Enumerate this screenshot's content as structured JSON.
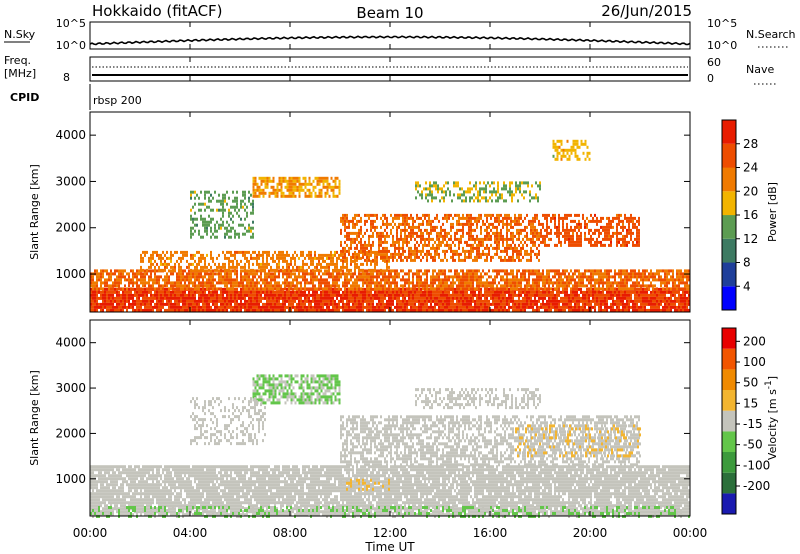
{
  "header": {
    "left": "Hokkaido (fitACF)",
    "center": "Beam 10",
    "right": "26/Jun/2015"
  },
  "noise_panel": {
    "left_label": "N.Sky",
    "right_label": "N.Search",
    "left_ticks": [
      "10^5",
      "10^0"
    ],
    "right_ticks": [
      "10^5",
      "10^0"
    ]
  },
  "freq_panel": {
    "left_label_line1": "Freq.",
    "left_label_line2": "[MHz]",
    "left_ticks": [
      "8"
    ],
    "right_label": "Nave",
    "right_ticks": [
      "60",
      "0"
    ]
  },
  "cpid": {
    "label": "CPID",
    "text": "rbsp 200"
  },
  "x_axis": {
    "label": "Time UT",
    "ticks": [
      "00:00",
      "04:00",
      "08:00",
      "12:00",
      "16:00",
      "20:00",
      "00:00"
    ]
  },
  "colors": {
    "power": [
      "#0000ff",
      "#1f3f9a",
      "#3d7a62",
      "#5c9c52",
      "#f2b400",
      "#f07a00",
      "#ee4d00",
      "#e81c00"
    ],
    "velocity": [
      "#e80000",
      "#f25500",
      "#f08a00",
      "#f3b530",
      "#c4c4bc",
      "#63c64a",
      "#3c9a3c",
      "#2b6f3a",
      "#1a1ab0"
    ],
    "black": "#000000"
  },
  "chart_data": [
    {
      "type": "heatmap",
      "title": "",
      "xlabel": "Time UT",
      "ylabel": "Slant Range [km]",
      "xlim": [
        "00:00",
        "24:00"
      ],
      "ylim": [
        180,
        4500
      ],
      "y_ticks": [
        "1000",
        "2000",
        "3000",
        "4000"
      ],
      "colorbar": {
        "label": "Power [dB]",
        "ticks": [
          "4",
          "8",
          "12",
          "16",
          "20",
          "24",
          "28"
        ],
        "range": [
          0,
          32
        ]
      },
      "regions": [
        {
          "t": [
            0.0,
            24.0
          ],
          "r": [
            200,
            700
          ],
          "value": 28,
          "density": 0.92
        },
        {
          "t": [
            0.0,
            24.0
          ],
          "r": [
            700,
            1100
          ],
          "value": 24,
          "density": 0.78
        },
        {
          "t": [
            2.0,
            12.0
          ],
          "r": [
            1100,
            1500
          ],
          "value": 22,
          "density": 0.55
        },
        {
          "t": [
            10.0,
            18.0
          ],
          "r": [
            1300,
            2300
          ],
          "value": 24,
          "density": 0.6
        },
        {
          "t": [
            18.0,
            22.0
          ],
          "r": [
            1600,
            2300
          ],
          "value": 26,
          "density": 0.6
        },
        {
          "t": [
            6.5,
            10.0
          ],
          "r": [
            2700,
            3100
          ],
          "value": 20,
          "density": 0.75
        },
        {
          "t": [
            4.0,
            6.5
          ],
          "r": [
            1800,
            2800
          ],
          "value": 14,
          "density": 0.45
        },
        {
          "t": [
            13.0,
            18.0
          ],
          "r": [
            2600,
            3000
          ],
          "value": 16,
          "density": 0.45
        },
        {
          "t": [
            18.5,
            20.0
          ],
          "r": [
            3500,
            3900
          ],
          "value": 18,
          "density": 0.5
        }
      ]
    },
    {
      "type": "heatmap",
      "title": "",
      "xlabel": "Time UT",
      "ylabel": "Slant Range [km]",
      "xlim": [
        "00:00",
        "24:00"
      ],
      "ylim": [
        180,
        4500
      ],
      "y_ticks": [
        "1000",
        "2000",
        "3000",
        "4000"
      ],
      "colorbar": {
        "label": "Velocity [m s^-1]",
        "ticks": [
          "200",
          "100",
          "50",
          "15",
          "-15",
          "-50",
          "-100",
          "-200"
        ],
        "range": [
          -250,
          250
        ]
      },
      "regions": [
        {
          "t": [
            0.0,
            24.0
          ],
          "r": [
            200,
            1300
          ],
          "value": 0,
          "density": 0.85
        },
        {
          "t": [
            0.0,
            24.0
          ],
          "r": [
            200,
            400
          ],
          "value": -40,
          "density": 0.35
        },
        {
          "t": [
            6.5,
            10.0
          ],
          "r": [
            2700,
            3300
          ],
          "value": -30,
          "density": 0.7
        },
        {
          "t": [
            10.0,
            22.0
          ],
          "r": [
            1300,
            2400
          ],
          "value": 0,
          "density": 0.6
        },
        {
          "t": [
            4.0,
            7.0
          ],
          "r": [
            1800,
            2800
          ],
          "value": 0,
          "density": 0.35
        },
        {
          "t": [
            17.0,
            22.0
          ],
          "r": [
            1500,
            2200
          ],
          "value": 30,
          "density": 0.35
        },
        {
          "t": [
            10.0,
            12.0
          ],
          "r": [
            800,
            1000
          ],
          "value": 30,
          "density": 0.5
        },
        {
          "t": [
            13.0,
            18.0
          ],
          "r": [
            2600,
            3000
          ],
          "value": 0,
          "density": 0.45
        }
      ]
    }
  ]
}
